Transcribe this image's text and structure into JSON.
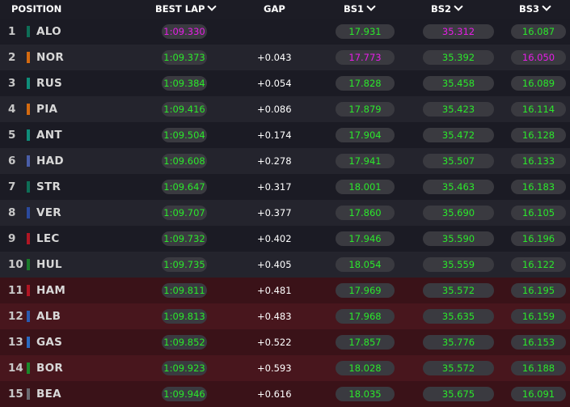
{
  "header": {
    "position": "POSITION",
    "best_lap": "BEST LAP",
    "gap": "GAP",
    "bs1": "BS1",
    "bs2": "BS2",
    "bs3": "BS3"
  },
  "colors": {
    "green": "#2be82b",
    "purple": "#e61ee6"
  },
  "rows": [
    {
      "pos": "1",
      "code": "ALO",
      "team_color": "#0e6e56",
      "lap": "1:09.330",
      "lap_color": "#e61ee6",
      "gap": "",
      "bs1": "17.931",
      "bs1_color": "#2be82b",
      "bs2": "35.312",
      "bs2_color": "#e61ee6",
      "bs3": "16.087",
      "bs3_color": "#2be82b"
    },
    {
      "pos": "2",
      "code": "NOR",
      "team_color": "#d46a10",
      "lap": "1:09.373",
      "lap_color": "#2be82b",
      "gap": "+0.043",
      "bs1": "17.773",
      "bs1_color": "#e61ee6",
      "bs2": "35.392",
      "bs2_color": "#2be82b",
      "bs3": "16.050",
      "bs3_color": "#e61ee6"
    },
    {
      "pos": "3",
      "code": "RUS",
      "team_color": "#0f8e7a",
      "lap": "1:09.384",
      "lap_color": "#2be82b",
      "gap": "+0.054",
      "bs1": "17.828",
      "bs1_color": "#2be82b",
      "bs2": "35.458",
      "bs2_color": "#2be82b",
      "bs3": "16.089",
      "bs3_color": "#2be82b"
    },
    {
      "pos": "4",
      "code": "PIA",
      "team_color": "#d46a10",
      "lap": "1:09.416",
      "lap_color": "#2be82b",
      "gap": "+0.086",
      "bs1": "17.879",
      "bs1_color": "#2be82b",
      "bs2": "35.423",
      "bs2_color": "#2be82b",
      "bs3": "16.114",
      "bs3_color": "#2be82b"
    },
    {
      "pos": "5",
      "code": "ANT",
      "team_color": "#0f8e7a",
      "lap": "1:09.504",
      "lap_color": "#2be82b",
      "gap": "+0.174",
      "bs1": "17.904",
      "bs1_color": "#2be82b",
      "bs2": "35.472",
      "bs2_color": "#2be82b",
      "bs3": "16.128",
      "bs3_color": "#2be82b"
    },
    {
      "pos": "6",
      "code": "HAD",
      "team_color": "#4a5ea8",
      "lap": "1:09.608",
      "lap_color": "#2be82b",
      "gap": "+0.278",
      "bs1": "17.941",
      "bs1_color": "#2be82b",
      "bs2": "35.507",
      "bs2_color": "#2be82b",
      "bs3": "16.133",
      "bs3_color": "#2be82b"
    },
    {
      "pos": "7",
      "code": "STR",
      "team_color": "#0e6e56",
      "lap": "1:09.647",
      "lap_color": "#2be82b",
      "gap": "+0.317",
      "bs1": "18.001",
      "bs1_color": "#2be82b",
      "bs2": "35.463",
      "bs2_color": "#2be82b",
      "bs3": "16.183",
      "bs3_color": "#2be82b"
    },
    {
      "pos": "8",
      "code": "VER",
      "team_color": "#2b4a9e",
      "lap": "1:09.707",
      "lap_color": "#2be82b",
      "gap": "+0.377",
      "bs1": "17.860",
      "bs1_color": "#2be82b",
      "bs2": "35.690",
      "bs2_color": "#2be82b",
      "bs3": "16.105",
      "bs3_color": "#2be82b"
    },
    {
      "pos": "9",
      "code": "LEC",
      "team_color": "#b01624",
      "lap": "1:09.732",
      "lap_color": "#2be82b",
      "gap": "+0.402",
      "bs1": "17.946",
      "bs1_color": "#2be82b",
      "bs2": "35.590",
      "bs2_color": "#2be82b",
      "bs3": "16.196",
      "bs3_color": "#2be82b"
    },
    {
      "pos": "10",
      "code": "HUL",
      "team_color": "#1a7a2a",
      "lap": "1:09.735",
      "lap_color": "#2be82b",
      "gap": "+0.405",
      "bs1": "18.054",
      "bs1_color": "#2be82b",
      "bs2": "35.559",
      "bs2_color": "#2be82b",
      "bs3": "16.122",
      "bs3_color": "#2be82b"
    },
    {
      "pos": "11",
      "code": "HAM",
      "team_color": "#b01624",
      "lap": "1:09.811",
      "lap_color": "#2be82b",
      "gap": "+0.481",
      "bs1": "17.969",
      "bs1_color": "#2be82b",
      "bs2": "35.572",
      "bs2_color": "#2be82b",
      "bs3": "16.195",
      "bs3_color": "#2be82b"
    },
    {
      "pos": "12",
      "code": "ALB",
      "team_color": "#2a5ab0",
      "lap": "1:09.813",
      "lap_color": "#2be82b",
      "gap": "+0.483",
      "bs1": "17.968",
      "bs1_color": "#2be82b",
      "bs2": "35.635",
      "bs2_color": "#2be82b",
      "bs3": "16.159",
      "bs3_color": "#2be82b"
    },
    {
      "pos": "13",
      "code": "GAS",
      "team_color": "#2a6ac0",
      "lap": "1:09.852",
      "lap_color": "#2be82b",
      "gap": "+0.522",
      "bs1": "17.857",
      "bs1_color": "#2be82b",
      "bs2": "35.776",
      "bs2_color": "#2be82b",
      "bs3": "16.153",
      "bs3_color": "#2be82b"
    },
    {
      "pos": "14",
      "code": "BOR",
      "team_color": "#1a8a2a",
      "lap": "1:09.923",
      "lap_color": "#2be82b",
      "gap": "+0.593",
      "bs1": "18.028",
      "bs1_color": "#2be82b",
      "bs2": "35.572",
      "bs2_color": "#2be82b",
      "bs3": "16.188",
      "bs3_color": "#2be82b"
    },
    {
      "pos": "15",
      "code": "BEA",
      "team_color": "#6a6a70",
      "lap": "1:09.946",
      "lap_color": "#2be82b",
      "gap": "+0.616",
      "bs1": "18.035",
      "bs1_color": "#2be82b",
      "bs2": "35.675",
      "bs2_color": "#2be82b",
      "bs3": "16.091",
      "bs3_color": "#2be82b"
    }
  ]
}
